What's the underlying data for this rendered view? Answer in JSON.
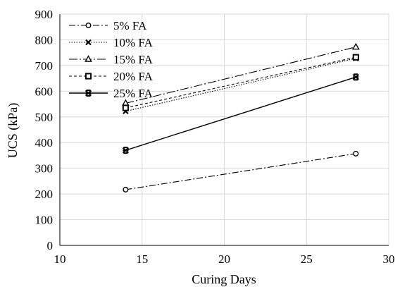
{
  "chart_data": {
    "type": "line",
    "title": "",
    "xlabel": "Curing Days",
    "ylabel": "UCS (kPa)",
    "xlim": [
      10,
      30
    ],
    "ylim": [
      0,
      900
    ],
    "x_ticks": [
      "10",
      "15",
      "20",
      "25",
      "30"
    ],
    "y_ticks": [
      "0",
      "100",
      "200",
      "300",
      "400",
      "500",
      "600",
      "700",
      "800",
      "900"
    ],
    "grid": true,
    "legend_position": "top-left",
    "series": [
      {
        "name": "5% FA",
        "x": [
          14,
          28
        ],
        "y": [
          217,
          357
        ],
        "marker": "circle",
        "dash": "dashdot",
        "fill": "none"
      },
      {
        "name": "10% FA",
        "x": [
          14,
          28
        ],
        "y": [
          522,
          728
        ],
        "marker": "x",
        "dash": "dotted",
        "fill": "none"
      },
      {
        "name": "15% FA",
        "x": [
          14,
          28
        ],
        "y": [
          553,
          772
        ],
        "marker": "triangle",
        "dash": "dashdotlong",
        "fill": "none"
      },
      {
        "name": "20% FA",
        "x": [
          14,
          28
        ],
        "y": [
          535,
          732
        ],
        "marker": "square",
        "dash": "dashed",
        "fill": "none"
      },
      {
        "name": "25% FA",
        "x": [
          14,
          28
        ],
        "y": [
          370,
          655
        ],
        "marker": "star",
        "dash": "solid",
        "fill": "#000000"
      }
    ],
    "colors": {
      "line": "#000000",
      "grid": "#d9d9d9",
      "axis": "#000000"
    }
  }
}
